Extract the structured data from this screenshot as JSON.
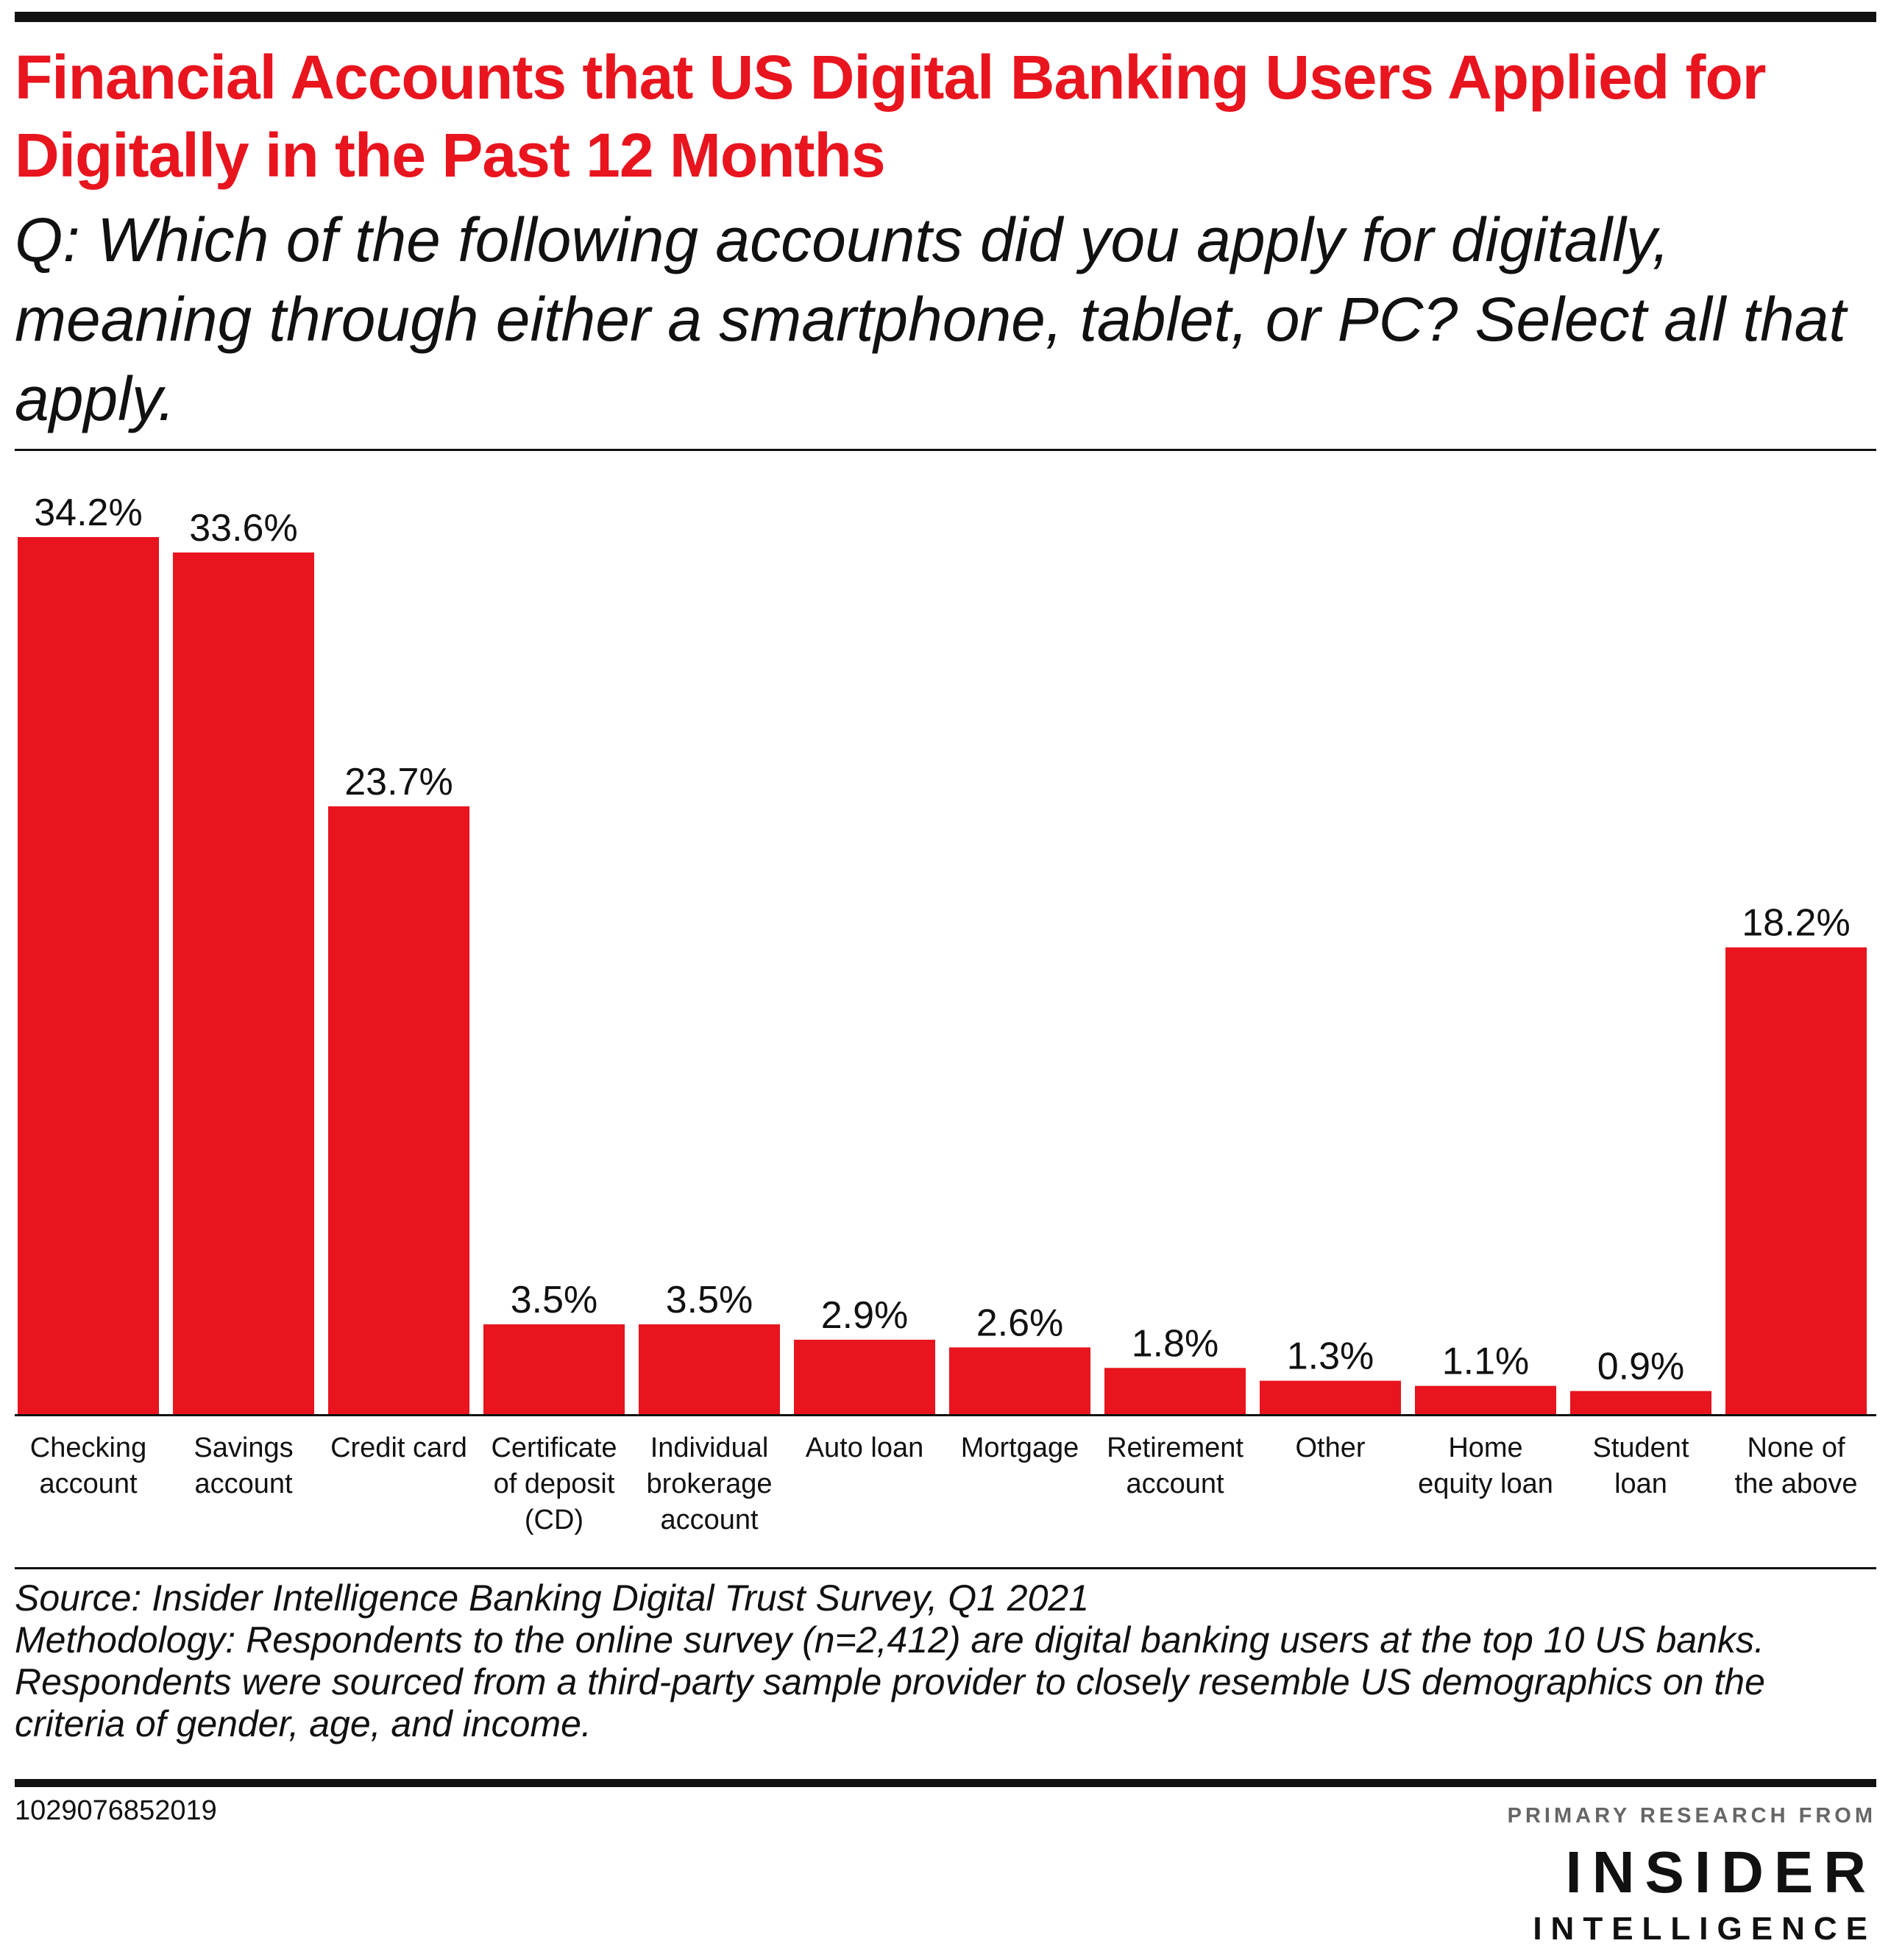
{
  "title": "Financial Accounts that US Digital Banking Users Applied for Digitally in the Past 12 Months",
  "subtitle": "Q: Which of the following accounts did you apply for digitally, meaning through either a smartphone, tablet, or PC? Select all that apply.",
  "colors": {
    "bar": "#e8141e",
    "title": "#e8141e",
    "text": "#111111"
  },
  "chart_data": {
    "type": "bar",
    "categories": [
      [
        "Checking",
        "account"
      ],
      [
        "Savings",
        "account"
      ],
      [
        "Credit card"
      ],
      [
        "Certificate",
        "of deposit",
        "(CD)"
      ],
      [
        "Individual",
        "brokerage",
        "account"
      ],
      [
        "Auto loan"
      ],
      [
        "Mortgage"
      ],
      [
        "Retirement",
        "account"
      ],
      [
        "Other"
      ],
      [
        "Home",
        "equity loan"
      ],
      [
        "Student",
        "loan"
      ],
      [
        "None of",
        "the above"
      ]
    ],
    "values": [
      34.2,
      33.6,
      23.7,
      3.5,
      3.5,
      2.9,
      2.6,
      1.8,
      1.3,
      1.1,
      0.9,
      18.2
    ],
    "value_labels": [
      "34.2%",
      "33.6%",
      "23.7%",
      "3.5%",
      "3.5%",
      "2.9%",
      "2.6%",
      "1.8%",
      "1.3%",
      "1.1%",
      "0.9%",
      "18.2%"
    ],
    "unit": "%",
    "ylim": [
      0,
      34.2
    ],
    "grid": false,
    "legend": "none"
  },
  "notes": {
    "source": "Source: Insider Intelligence Banking Digital Trust Survey, Q1 2021",
    "methodology": "Methodology: Respondents to the online survey (n=2,412) are digital banking users at the top 10 US banks. Respondents were sourced from a third-party sample provider to closely resemble US demographics on the criteria of gender, age, and income."
  },
  "chart_id": "1029076852019",
  "brand": {
    "kicker": "PRIMARY RESEARCH FROM",
    "name": "INSIDER",
    "sub": "INTELLIGENCE"
  }
}
